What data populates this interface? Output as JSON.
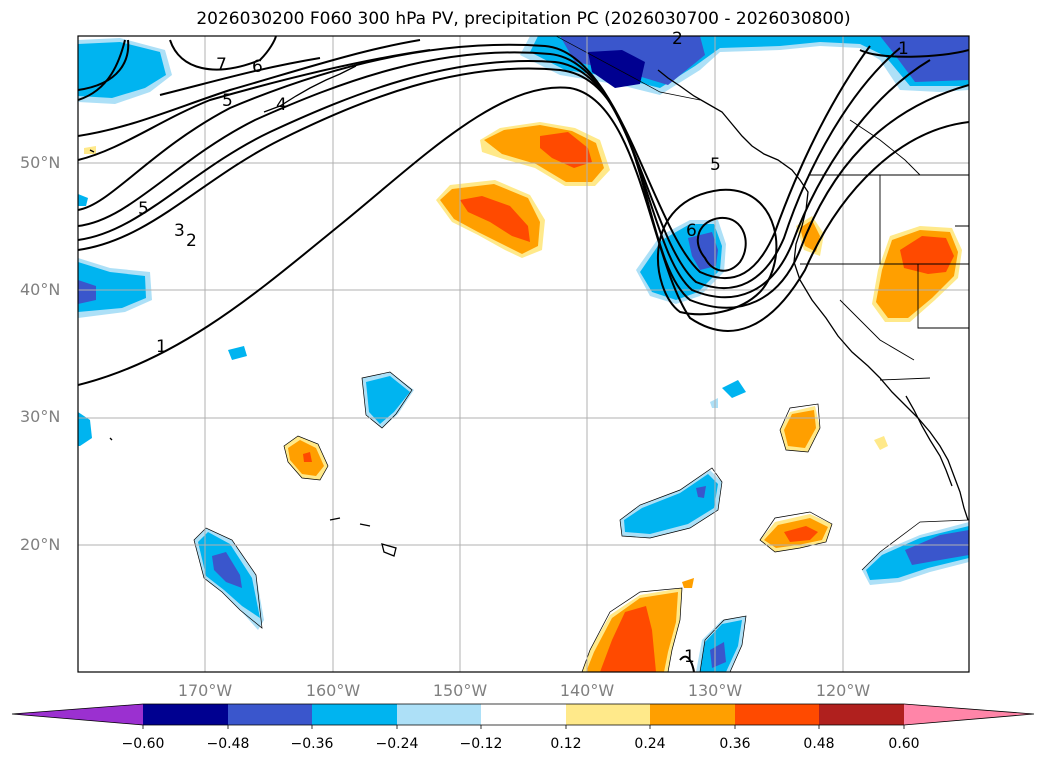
{
  "title": "2026030200 F060 300 hPa PV, precipitation PC (2026030700 - 2026030800)",
  "lat_labels": [
    "50°N",
    "40°N",
    "30°N",
    "20°N"
  ],
  "lon_labels": [
    "170°W",
    "160°W",
    "150°W",
    "140°W",
    "130°W",
    "120°W"
  ],
  "contour_labels": [
    "7",
    "6",
    "5",
    "4",
    "5",
    "3",
    "2",
    "1",
    "5",
    "6",
    "1",
    "2",
    "1"
  ],
  "colorbar": {
    "ticks": [
      "−0.60",
      "−0.48",
      "−0.36",
      "−0.24",
      "−0.12",
      "0.12",
      "0.24",
      "0.36",
      "0.48",
      "0.60"
    ],
    "colors": [
      "#9b30d0",
      "#000090",
      "#3a56cc",
      "#00b4f0",
      "#ade0f7",
      "#ffffff",
      "#ffe98a",
      "#ff9f00",
      "#ff4a00",
      "#b0201e",
      "#ff85a8"
    ]
  },
  "colors": {
    "neg_strong": "#000090",
    "neg_mid": "#3a56cc",
    "neg": "#00b4f0",
    "neg_weak": "#ade0f7",
    "pos_weak": "#ffe98a",
    "pos": "#ff9f00",
    "pos_mid": "#ff4a00"
  }
}
